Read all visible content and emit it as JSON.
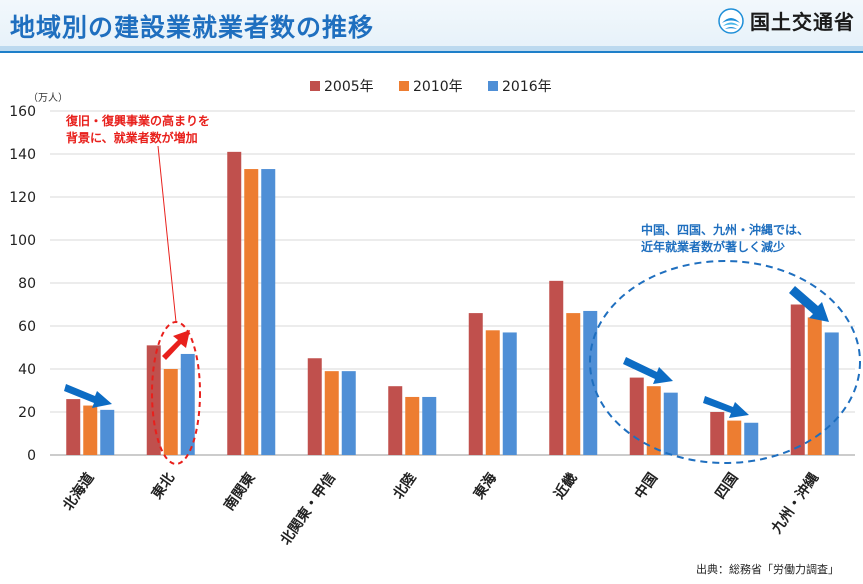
{
  "header": {
    "title": "地域別の建設業就業者数の推移",
    "logo_text": "国土交通省"
  },
  "source": "出典：総務省「労働力調査」",
  "annotations": {
    "tohoku_note_line1": "復旧・復興事業の高まりを",
    "tohoku_note_line2": "背景に、就業者数が増加",
    "west_note_line1": "中国、四国、九州・沖縄では、",
    "west_note_line2": "近年就業者数が著しく減少"
  },
  "colors": {
    "series_2005": "#c0504d",
    "series_2010": "#ed7d31",
    "series_2016": "#4f8fd6",
    "annotation_red": "#e8201c",
    "annotation_blue": "#1f6fbf",
    "arrow_blue": "#0c6cc4"
  },
  "chart_data": {
    "type": "bar",
    "unit_label": "（万人）",
    "categories": [
      "北海道",
      "東北",
      "南関東",
      "北関東・甲信",
      "北陸",
      "東海",
      "近畿",
      "中国",
      "四国",
      "九州・沖縄"
    ],
    "series": [
      {
        "name": "2005年",
        "values": [
          26,
          51,
          141,
          45,
          32,
          66,
          81,
          36,
          20,
          70
        ]
      },
      {
        "name": "2010年",
        "values": [
          23,
          40,
          133,
          39,
          27,
          58,
          66,
          32,
          16,
          64
        ]
      },
      {
        "name": "2016年",
        "values": [
          21,
          47,
          133,
          39,
          27,
          57,
          67,
          29,
          15,
          57
        ]
      }
    ],
    "ylim": [
      0,
      160
    ],
    "yticks": [
      0,
      20,
      40,
      60,
      80,
      100,
      120,
      140,
      160
    ],
    "grid": true,
    "legend_position": "top-center"
  }
}
